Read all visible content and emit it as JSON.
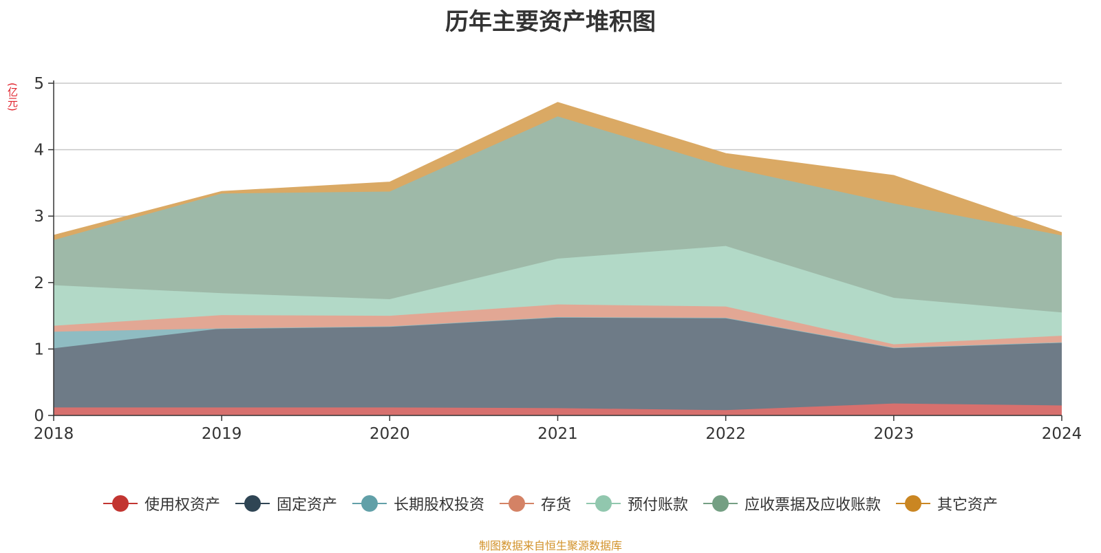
{
  "chart_data": {
    "type": "area",
    "stacked": true,
    "title": "历年主要资产堆积图",
    "y_unit": "(亿元)",
    "x": [
      "2018",
      "2019",
      "2020",
      "2021",
      "2022",
      "2023",
      "2024"
    ],
    "ylim": [
      0,
      5
    ],
    "yticks": [
      "0",
      "1",
      "2",
      "3",
      "4",
      "5"
    ],
    "grid": true,
    "legend_position": "bottom",
    "series": [
      {
        "name": "使用权资产",
        "color": "#c23531",
        "fill": "#d7706e",
        "values": [
          0.12,
          0.12,
          0.12,
          0.11,
          0.08,
          0.18,
          0.15
        ]
      },
      {
        "name": "固定资产",
        "color": "#2f4554",
        "fill": "#6e7b87",
        "values": [
          0.89,
          1.19,
          1.22,
          1.37,
          1.39,
          0.84,
          0.95
        ]
      },
      {
        "name": "长期股权投资",
        "color": "#61a0a8",
        "fill": "#8fbcc2",
        "values": [
          0.25,
          0.0,
          0.0,
          0.0,
          0.0,
          0.0,
          0.0
        ]
      },
      {
        "name": "存货",
        "color": "#d48265",
        "fill": "#e2a794",
        "values": [
          0.09,
          0.2,
          0.16,
          0.19,
          0.17,
          0.05,
          0.1
        ]
      },
      {
        "name": "预付账款",
        "color": "#91c7ae",
        "fill": "#b2d9c7",
        "values": [
          0.61,
          0.33,
          0.25,
          0.69,
          0.91,
          0.7,
          0.35
        ]
      },
      {
        "name": "应收票据及应收账款",
        "color": "#749f83",
        "fill": "#9eb9a8",
        "values": [
          0.68,
          1.5,
          1.62,
          2.14,
          1.19,
          1.42,
          1.16
        ]
      },
      {
        "name": "其它资产",
        "color": "#ca8622",
        "fill": "#daa964",
        "values": [
          0.07,
          0.03,
          0.14,
          0.21,
          0.2,
          0.42,
          0.04
        ]
      }
    ],
    "source": "制图数据来自恒生聚源数据库"
  }
}
